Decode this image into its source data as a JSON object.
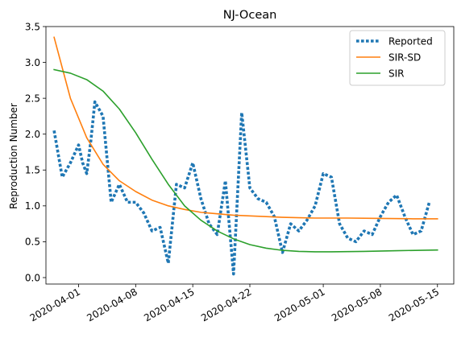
{
  "chart_data": {
    "type": "line",
    "title": "NJ-Ocean",
    "xlabel": "",
    "ylabel": "Reproduction Number",
    "x_range": [
      "2020-03-28",
      "2020-05-17"
    ],
    "ylim": [
      -0.09,
      3.5
    ],
    "x_ticks": [
      "2020-04-01",
      "2020-04-08",
      "2020-04-15",
      "2020-04-22",
      "2020-05-01",
      "2020-05-08",
      "2020-05-15"
    ],
    "y_ticks": [
      0.0,
      0.5,
      1.0,
      1.5,
      2.0,
      2.5,
      3.0,
      3.5
    ],
    "y_tick_labels": [
      "0.0",
      "0.5",
      "1.0",
      "1.5",
      "2.0",
      "2.5",
      "3.0",
      "3.5"
    ],
    "grid": false,
    "legend_position": "top-right",
    "series": [
      {
        "name": "Reported",
        "color": "#1f77b4",
        "style": "dotted",
        "points": [
          [
            "2020-03-29",
            2.05
          ],
          [
            "2020-03-30",
            1.4
          ],
          [
            "2020-03-31",
            1.6
          ],
          [
            "2020-04-01",
            1.85
          ],
          [
            "2020-04-01T12:00",
            1.6
          ],
          [
            "2020-04-02",
            1.45
          ],
          [
            "2020-04-02T12:00",
            1.9
          ],
          [
            "2020-04-03",
            2.45
          ],
          [
            "2020-04-04",
            2.25
          ],
          [
            "2020-04-05",
            1.05
          ],
          [
            "2020-04-06",
            1.3
          ],
          [
            "2020-04-07",
            1.05
          ],
          [
            "2020-04-08",
            1.05
          ],
          [
            "2020-04-09",
            0.9
          ],
          [
            "2020-04-10",
            0.65
          ],
          [
            "2020-04-11",
            0.7
          ],
          [
            "2020-04-12",
            0.2
          ],
          [
            "2020-04-13",
            1.3
          ],
          [
            "2020-04-14",
            1.25
          ],
          [
            "2020-04-15",
            1.6
          ],
          [
            "2020-04-16",
            1.1
          ],
          [
            "2020-04-17",
            0.75
          ],
          [
            "2020-04-18",
            0.6
          ],
          [
            "2020-04-19",
            1.35
          ],
          [
            "2020-04-20",
            0.05
          ],
          [
            "2020-04-21",
            2.3
          ],
          [
            "2020-04-22",
            1.25
          ],
          [
            "2020-04-23",
            1.1
          ],
          [
            "2020-04-24",
            1.05
          ],
          [
            "2020-04-25",
            0.85
          ],
          [
            "2020-04-26",
            0.35
          ],
          [
            "2020-04-27",
            0.75
          ],
          [
            "2020-04-28",
            0.65
          ],
          [
            "2020-04-29",
            0.8
          ],
          [
            "2020-04-30",
            1.0
          ],
          [
            "2020-05-01",
            1.45
          ],
          [
            "2020-05-02",
            1.4
          ],
          [
            "2020-05-03",
            0.75
          ],
          [
            "2020-05-04",
            0.55
          ],
          [
            "2020-05-05",
            0.5
          ],
          [
            "2020-05-06",
            0.65
          ],
          [
            "2020-05-07",
            0.6
          ],
          [
            "2020-05-08",
            0.85
          ],
          [
            "2020-05-09",
            1.05
          ],
          [
            "2020-05-10",
            1.15
          ],
          [
            "2020-05-11",
            0.85
          ],
          [
            "2020-05-12",
            0.6
          ],
          [
            "2020-05-13",
            0.65
          ],
          [
            "2020-05-14",
            1.05
          ]
        ]
      },
      {
        "name": "SIR-SD",
        "color": "#ff7f0e",
        "style": "solid",
        "points": [
          [
            "2020-03-29",
            3.35
          ],
          [
            "2020-03-31",
            2.5
          ],
          [
            "2020-04-02",
            1.95
          ],
          [
            "2020-04-04",
            1.58
          ],
          [
            "2020-04-06",
            1.35
          ],
          [
            "2020-04-08",
            1.2
          ],
          [
            "2020-04-10",
            1.08
          ],
          [
            "2020-04-12",
            1.0
          ],
          [
            "2020-04-14",
            0.95
          ],
          [
            "2020-04-16",
            0.91
          ],
          [
            "2020-04-18",
            0.89
          ],
          [
            "2020-04-20",
            0.87
          ],
          [
            "2020-04-22",
            0.86
          ],
          [
            "2020-04-24",
            0.85
          ],
          [
            "2020-04-26",
            0.84
          ],
          [
            "2020-04-30",
            0.83
          ],
          [
            "2020-05-04",
            0.83
          ],
          [
            "2020-05-08",
            0.825
          ],
          [
            "2020-05-12",
            0.82
          ],
          [
            "2020-05-15",
            0.82
          ]
        ]
      },
      {
        "name": "SIR",
        "color": "#2ca02c",
        "style": "solid",
        "points": [
          [
            "2020-03-29",
            2.9
          ],
          [
            "2020-03-31",
            2.85
          ],
          [
            "2020-04-02",
            2.76
          ],
          [
            "2020-04-04",
            2.6
          ],
          [
            "2020-04-06",
            2.35
          ],
          [
            "2020-04-08",
            2.02
          ],
          [
            "2020-04-10",
            1.65
          ],
          [
            "2020-04-12",
            1.3
          ],
          [
            "2020-04-14",
            1.0
          ],
          [
            "2020-04-16",
            0.8
          ],
          [
            "2020-04-18",
            0.65
          ],
          [
            "2020-04-20",
            0.54
          ],
          [
            "2020-04-22",
            0.46
          ],
          [
            "2020-04-24",
            0.41
          ],
          [
            "2020-04-26",
            0.38
          ],
          [
            "2020-04-28",
            0.365
          ],
          [
            "2020-04-30",
            0.36
          ],
          [
            "2020-05-02",
            0.36
          ],
          [
            "2020-05-06",
            0.365
          ],
          [
            "2020-05-10",
            0.375
          ],
          [
            "2020-05-15",
            0.385
          ]
        ]
      }
    ]
  }
}
